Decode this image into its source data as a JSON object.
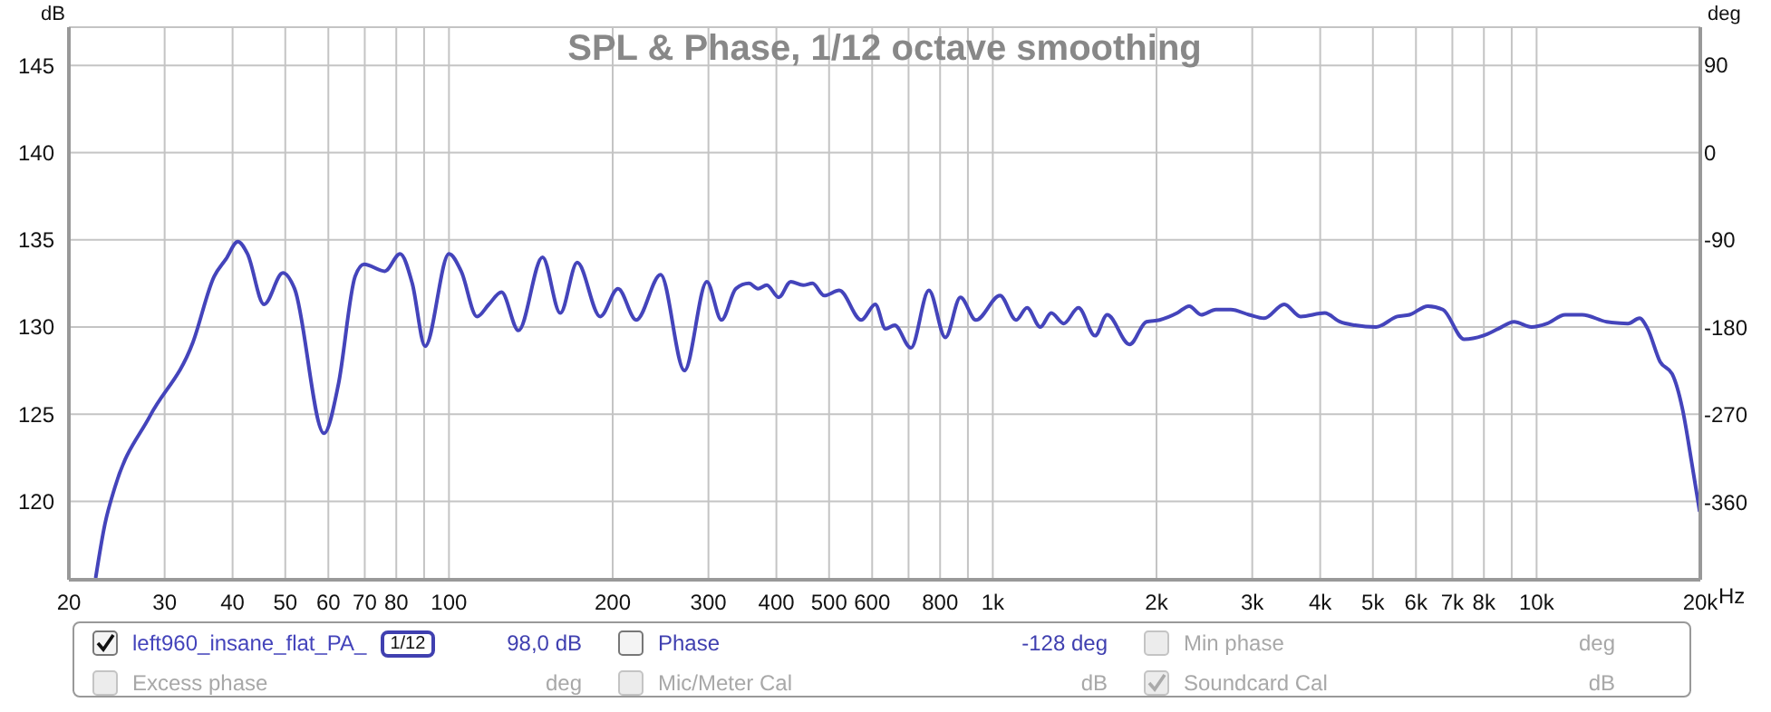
{
  "chart_data": {
    "type": "line",
    "title": "SPL & Phase, 1/12 octave smoothing",
    "ylabel": "dB",
    "y2label": "deg",
    "log": "x",
    "grid": true,
    "legend": "bottom",
    "xlim": [
      20,
      20000
    ],
    "xticks": [
      20,
      30,
      40,
      50,
      60,
      70,
      80,
      {
        "value": 90,
        "label": null
      },
      100,
      200,
      300,
      400,
      500,
      600,
      {
        "value": 700,
        "label": null
      },
      800,
      {
        "value": 900,
        "label": null
      },
      {
        "value": 1000,
        "label": "1k"
      },
      {
        "value": 2000,
        "label": "2k"
      },
      {
        "value": 3000,
        "label": "3k"
      },
      {
        "value": 4000,
        "label": "4k"
      },
      {
        "value": 5000,
        "label": "5k"
      },
      {
        "value": 6000,
        "label": "6k"
      },
      {
        "value": 7000,
        "label": "7k"
      },
      {
        "value": 8000,
        "label": "8k"
      },
      {
        "value": 9000,
        "label": null
      },
      {
        "value": 10000,
        "label": "10k"
      },
      {
        "value": 20000,
        "label": "20k"
      }
    ],
    "xlabel": "Hz",
    "ylim": [
      115.5,
      147.2
    ],
    "yticks": [
      120,
      125,
      130,
      135,
      140,
      145
    ],
    "y2lim": [
      -440,
      129
    ],
    "y2ticks": [
      90,
      0,
      -90,
      -180,
      -270,
      -360
    ],
    "x": [
      22.4,
      23.3,
      24.3,
      28.2,
      33.8,
      37.0,
      38.9,
      40.9,
      42.6,
      45.7,
      49.5,
      52.0,
      58.9,
      62.6,
      67.2,
      69.8,
      76.2,
      81.3,
      85.6,
      90.4,
      100,
      105.3,
      112.6,
      118.4,
      124.9,
      134.2,
      148.6,
      160.2,
      172.1,
      189.7,
      204.6,
      221,
      245,
      271,
      298,
      317,
      337,
      356,
      370,
      384,
      404,
      425,
      448,
      466,
      490,
      522,
      573,
      608,
      635,
      660,
      707,
      763,
      818,
      872,
      931,
      1031,
      1104,
      1156,
      1223,
      1281,
      1350,
      1437,
      1542,
      1623,
      1785,
      1916,
      2027,
      2183,
      2297,
      2416,
      2573,
      2739,
      2960,
      3155,
      3436,
      3681,
      4078,
      4348,
      4637,
      5068,
      5541,
      5836,
      6310,
      6725,
      7360,
      7967,
      8507,
      9091,
      9787,
      10455,
      11287,
      12128,
      13451,
      14722,
      15465,
      16000,
      16875,
      17757,
      18544,
      19290,
      19950
    ],
    "series": [
      {
        "name": "left960_insane_flat_PA_",
        "color": "#4444bb",
        "values": [
          115.6,
          118.7,
          120.8,
          124.9,
          129.1,
          132.9,
          133.9,
          134.9,
          134.2,
          131.3,
          133.1,
          132.2,
          123.9,
          126.7,
          132.9,
          133.6,
          133.2,
          134.2,
          132.5,
          128.9,
          134.2,
          133.2,
          130.6,
          131.3,
          132.0,
          129.8,
          134.0,
          130.8,
          133.7,
          130.6,
          132.2,
          130.4,
          133.0,
          127.5,
          132.6,
          130.4,
          132.2,
          132.5,
          132.2,
          132.4,
          131.7,
          132.6,
          132.4,
          132.5,
          131.8,
          132.1,
          130.4,
          131.3,
          129.9,
          130.1,
          128.8,
          132.1,
          129.4,
          131.7,
          130.4,
          131.8,
          130.4,
          131.1,
          130.0,
          130.8,
          130.2,
          131.1,
          129.5,
          130.7,
          129.0,
          130.3,
          130.4,
          130.8,
          131.2,
          130.7,
          131.0,
          131.0,
          130.7,
          130.5,
          131.3,
          130.6,
          130.8,
          130.3,
          130.1,
          130.0,
          130.6,
          130.7,
          131.2,
          131.0,
          129.3,
          129.5,
          129.9,
          130.3,
          130.0,
          130.2,
          130.7,
          130.7,
          130.3,
          130.2,
          130.5,
          129.9,
          128.0,
          127.3,
          125.3,
          122.2,
          119.4
        ]
      }
    ],
    "annotations": [
      "1/12",
      "98,0 dB",
      "Phase",
      "-128 deg",
      "Min phase",
      "deg",
      "Excess phase",
      "deg",
      "Mic/Meter Cal",
      "dB",
      "Soundcard Cal",
      "dB"
    ]
  }
}
